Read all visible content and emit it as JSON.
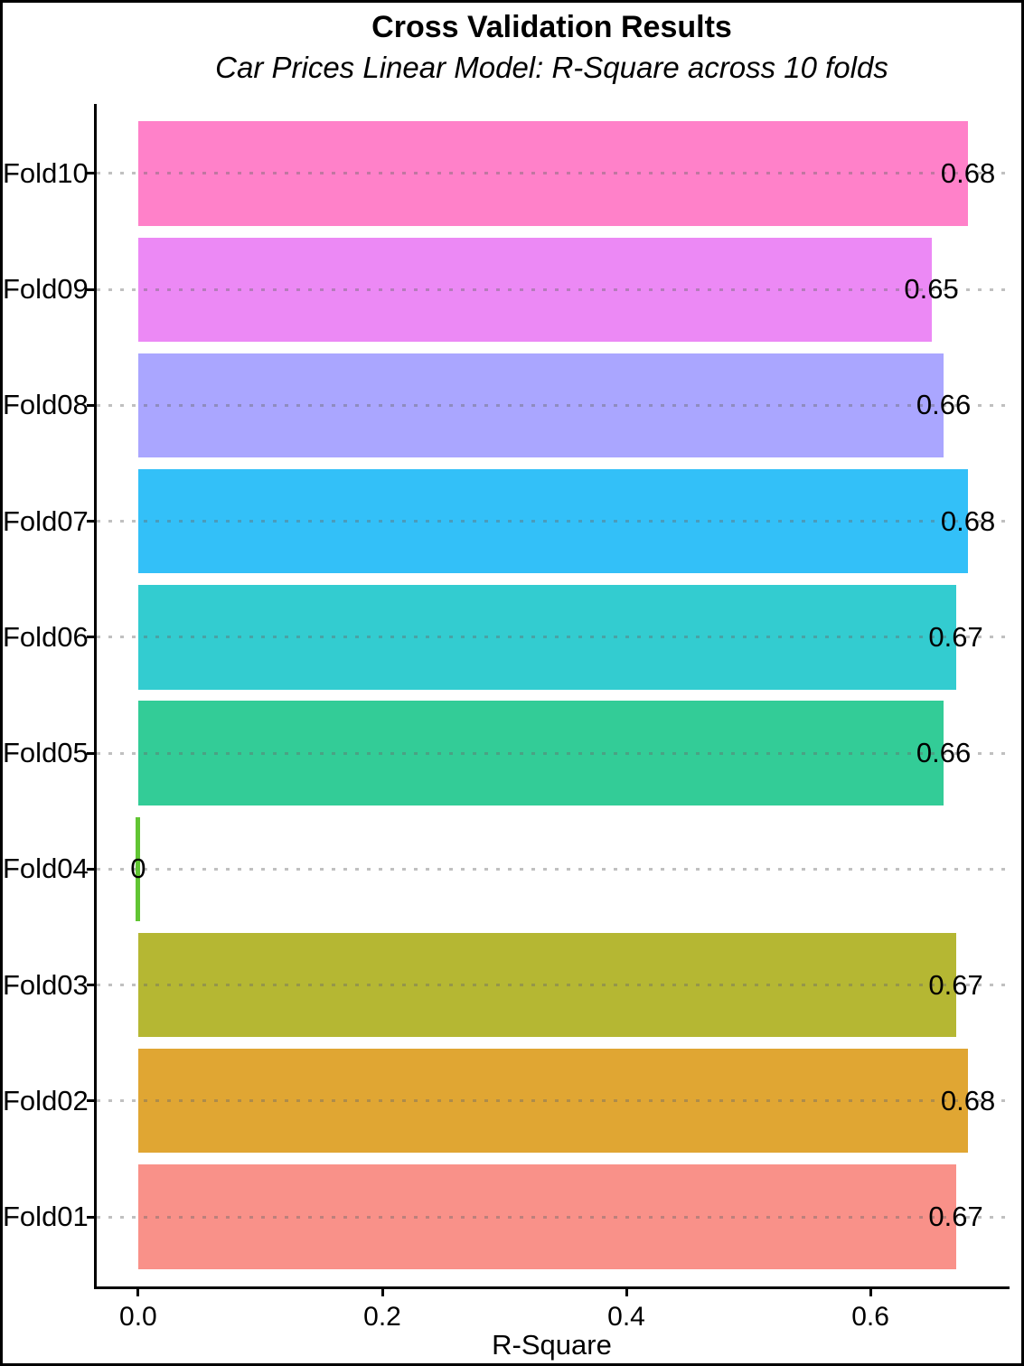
{
  "figure": {
    "background_color": "#FFFFFF",
    "border_color": "#000000",
    "text_color": "#000000"
  },
  "chart_data": {
    "type": "bar",
    "orientation": "horizontal",
    "title": "Cross Validation Results",
    "subtitle": "Car Prices Linear Model: R-Square across 10 folds",
    "xlabel": "R-Square",
    "ylabel": "",
    "legend": "none",
    "grid": {
      "style": "horizontal-dotted",
      "color": "#C0C0C0",
      "drawn_over_bars": true
    },
    "axis_color": "#000000",
    "xlim_display": [
      -0.034,
      0.714
    ],
    "x_ticks": {
      "labels": [
        "0.0",
        "0.2",
        "0.4",
        "0.6"
      ],
      "values": [
        0.0,
        0.2,
        0.4,
        0.6
      ]
    },
    "rows_top_to_bottom": [
      {
        "category": "Fold10",
        "value": 0.68,
        "label": "0.68",
        "color": "#FF81C9"
      },
      {
        "category": "Fold09",
        "value": 0.65,
        "label": "0.65",
        "color": "#EC89F5"
      },
      {
        "category": "Fold08",
        "value": 0.66,
        "label": "0.66",
        "color": "#AAA6FF"
      },
      {
        "category": "Fold07",
        "value": 0.68,
        "label": "0.68",
        "color": "#33C0F8"
      },
      {
        "category": "Fold06",
        "value": 0.67,
        "label": "0.67",
        "color": "#33CCD0"
      },
      {
        "category": "Fold05",
        "value": 0.66,
        "label": "0.66",
        "color": "#33CC97"
      },
      {
        "category": "Fold04",
        "value": 0,
        "label": "0",
        "color": "#61C533"
      },
      {
        "category": "Fold03",
        "value": 0.67,
        "label": "0.67",
        "color": "#B5B733"
      },
      {
        "category": "Fold02",
        "value": 0.68,
        "label": "0.68",
        "color": "#E0A633"
      },
      {
        "category": "Fold01",
        "value": 0.67,
        "label": "0.67",
        "color": "#F99189"
      }
    ],
    "value_label_color": "#000000",
    "zero_bar_rendered_as": "thin-vertical-line"
  }
}
